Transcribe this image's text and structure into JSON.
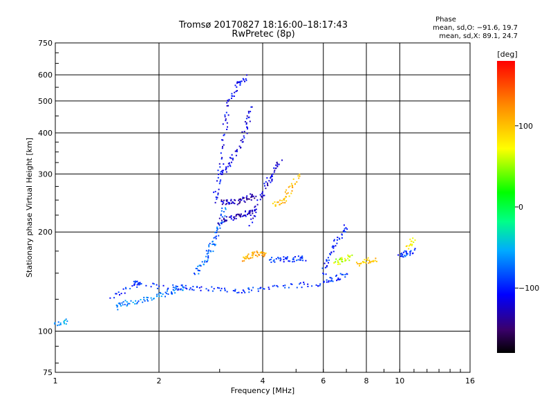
{
  "chart_data": {
    "type": "scatter",
    "title": "Tromsø 20170827 18:16:00–18:17:43",
    "subtitle": "RwPretec (8p)",
    "xlabel": "Frequency [MHz]",
    "ylabel": "Stationary phase Virtual Height [km]",
    "x_scale": "log",
    "y_scale": "log",
    "xlim": [
      1,
      16
    ],
    "ylim": [
      75,
      750
    ],
    "x_ticks": [
      1,
      2,
      4,
      6,
      8,
      10,
      16
    ],
    "x_tick_labels": [
      "1",
      "2",
      "4",
      "6",
      "8",
      "10",
      "16"
    ],
    "y_ticks": [
      75,
      100,
      200,
      300,
      400,
      500,
      600,
      750
    ],
    "y_tick_labels": [
      "75",
      "100",
      "200",
      "300",
      "400",
      "500",
      "600",
      "750"
    ],
    "grid": true,
    "stats": {
      "heading": "Phase",
      "line_o": "mean, sd,O: −91.6, 19.7",
      "line_x": "mean, sd,X:  89.1, 24.7"
    },
    "colorbar": {
      "label": "[deg]",
      "range": [
        -180,
        180
      ],
      "ticks": [
        100,
        0,
        -100
      ],
      "tick_labels": [
        "100",
        "0",
        "−100"
      ],
      "colormap": "rainbow"
    },
    "series_traces": [
      {
        "x": [
          1.0,
          1.1
        ],
        "y": [
          104,
          108
        ],
        "phase": -55
      },
      {
        "x": [
          1.45,
          1.7,
          1.75,
          2.2,
          2.5,
          3.0,
          3.5,
          4.0,
          5.0,
          6.0,
          6.5,
          7.0
        ],
        "y": [
          126,
          140,
          138,
          136,
          135,
          134,
          133,
          134,
          138,
          140,
          145,
          148
        ],
        "phase": -95
      },
      {
        "x": [
          1.5,
          1.6,
          1.8,
          2.0,
          2.2,
          2.4
        ],
        "y": [
          118,
          122,
          124,
          128,
          132,
          136
        ],
        "phase": -70
      },
      {
        "x": [
          2.55,
          2.7,
          2.8,
          2.9,
          3.0,
          3.1
        ],
        "y": [
          150,
          160,
          175,
          190,
          210,
          240
        ],
        "phase": -75
      },
      {
        "x": [
          2.9,
          3.0,
          3.1,
          3.2,
          3.4,
          3.6
        ],
        "y": [
          250,
          300,
          400,
          500,
          560,
          590
        ],
        "phase": -110
      },
      {
        "x": [
          3.0,
          3.2,
          3.4,
          3.6,
          3.7
        ],
        "y": [
          300,
          320,
          360,
          420,
          480
        ],
        "phase": -115
      },
      {
        "x": [
          3.0,
          3.2,
          3.4,
          3.6,
          3.8
        ],
        "y": [
          250,
          245,
          248,
          252,
          258
        ],
        "phase": -130
      },
      {
        "x": [
          3.0,
          3.2,
          3.4,
          3.6,
          3.8
        ],
        "y": [
          215,
          220,
          225,
          228,
          232
        ],
        "phase": -125
      },
      {
        "x": [
          3.7,
          3.9,
          4.1,
          4.3,
          4.5
        ],
        "y": [
          210,
          250,
          280,
          300,
          330
        ],
        "phase": -120
      },
      {
        "x": [
          4.3,
          4.6,
          4.8,
          5.1
        ],
        "y": [
          240,
          250,
          270,
          300
        ],
        "phase": 105
      },
      {
        "x": [
          3.5,
          3.7,
          3.9,
          4.1
        ],
        "y": [
          165,
          170,
          172,
          170
        ],
        "phase": 110
      },
      {
        "x": [
          4.2,
          4.6,
          5.0,
          5.3
        ],
        "y": [
          165,
          165,
          166,
          166
        ],
        "phase": -95
      },
      {
        "x": [
          6.0,
          6.3,
          6.6,
          7.0
        ],
        "y": [
          150,
          170,
          190,
          210
        ],
        "phase": -100
      },
      {
        "x": [
          6.5,
          6.8,
          7.2
        ],
        "y": [
          160,
          165,
          168
        ],
        "phase": 60
      },
      {
        "x": [
          7.5,
          8.0,
          8.5
        ],
        "y": [
          160,
          163,
          165
        ],
        "phase": 100
      },
      {
        "x": [
          10.0,
          10.5,
          11.0
        ],
        "y": [
          170,
          172,
          175
        ],
        "phase": -90
      },
      {
        "x": [
          10.5,
          11.0
        ],
        "y": [
          180,
          190
        ],
        "phase": 70
      }
    ]
  }
}
